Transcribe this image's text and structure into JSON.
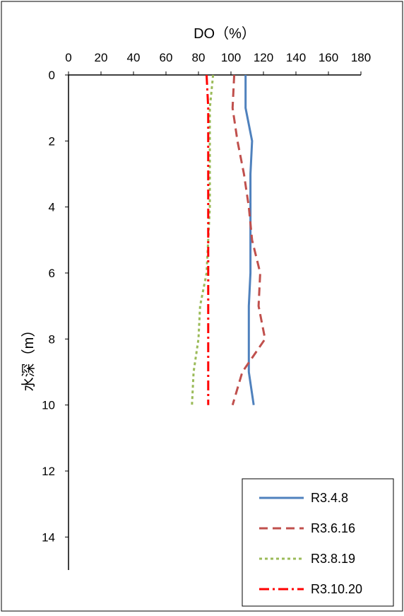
{
  "chart_data": {
    "type": "line",
    "orientation": "depth-profile",
    "xlabel": "DO（%）",
    "ylabel": "水深（m）",
    "xlim": [
      0,
      180
    ],
    "ylim": [
      0,
      15
    ],
    "x_ticks": [
      "0",
      "20",
      "40",
      "60",
      "80",
      "100",
      "120",
      "140",
      "160",
      "180"
    ],
    "y_ticks": [
      "0",
      "2",
      "4",
      "6",
      "8",
      "10",
      "12",
      "14"
    ],
    "y_inverted": true,
    "x_axis_position": "top",
    "grid": false,
    "legend_position": "bottom-right",
    "series": [
      {
        "name": "R3.4.8",
        "color": "#4f81bd",
        "dash": "solid",
        "x": [
          109,
          109,
          113,
          112,
          112,
          112,
          112,
          111,
          111,
          111,
          114
        ],
        "y": [
          0,
          1,
          2,
          3,
          4,
          5,
          6,
          7,
          8,
          9,
          10
        ]
      },
      {
        "name": "R3.6.16",
        "color": "#c0504d",
        "dash": "dash",
        "x": [
          102,
          101,
          104,
          108,
          111,
          113,
          118,
          117,
          121,
          107,
          101
        ],
        "y": [
          0,
          1,
          2,
          3,
          4,
          5,
          6,
          7,
          8,
          9,
          10
        ]
      },
      {
        "name": "R3.8.19",
        "color": "#9bbb59",
        "dash": "dot",
        "x": [
          89,
          87,
          87,
          87,
          87,
          86,
          85,
          81,
          80,
          77,
          76
        ],
        "y": [
          0,
          1,
          2,
          3,
          4,
          5,
          6,
          7,
          8,
          9,
          10
        ]
      },
      {
        "name": "R3.10.20",
        "color": "#ff0000",
        "dash": "dashdot",
        "x": [
          85,
          86,
          86,
          86,
          86,
          86,
          86,
          86,
          86,
          86,
          86
        ],
        "y": [
          0,
          1,
          2,
          3,
          4,
          5,
          6,
          7,
          8,
          9,
          10
        ]
      }
    ]
  }
}
